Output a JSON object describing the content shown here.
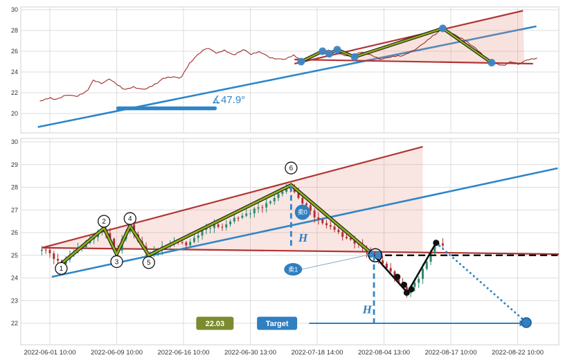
{
  "colors": {
    "grid": "#dcdcdc",
    "panel_border": "#d0d0d0",
    "axis_text": "#333333",
    "price_line": "#9e2b25",
    "wedge_line": "#b03434",
    "wedge_fill": "#e58a7a",
    "trend_blue": "#2e86c8",
    "zigzag_green": "#8fae1b",
    "zigzag_border": "#1c1c1c",
    "dot_blue": "#3d85c6",
    "badge_blue": "#2f7fc1",
    "badge_text": "#ffffff",
    "price_box_green": "#7a8c2e",
    "black": "#111111",
    "up_candle": "#2e8b6e",
    "down_candle": "#b03030"
  },
  "chart_data": {
    "x_labels": [
      "2022-06-01 10:00",
      "2022-06-09 10:00",
      "2022-06-16 10:00",
      "2022-06-30 13:00",
      "2022-07-18 14:00",
      "2022-08-04 13:00",
      "2022-08-17 10:00",
      "2022-08-22 10:00"
    ],
    "wiggle": [
      0.62,
      0.17,
      0.83,
      0.35,
      0.95,
      0.08,
      0.55,
      0.72,
      0.28,
      0.9,
      0.12,
      0.47,
      0.77
    ],
    "panels": [
      {
        "type": "line",
        "yticks": [
          30,
          28,
          26,
          24,
          22,
          20
        ],
        "ylim": [
          18.1,
          30.3
        ],
        "price_keyframes": [
          [
            -0.15,
            21.2
          ],
          [
            0.0,
            21.5
          ],
          [
            0.1,
            21.35
          ],
          [
            0.25,
            21.8
          ],
          [
            0.4,
            21.65
          ],
          [
            0.55,
            22.1
          ],
          [
            0.65,
            23.2
          ],
          [
            0.78,
            22.9
          ],
          [
            0.9,
            23.35
          ],
          [
            1.0,
            22.8
          ],
          [
            1.12,
            22.3
          ],
          [
            1.25,
            22.55
          ],
          [
            1.4,
            22.3
          ],
          [
            1.55,
            22.7
          ],
          [
            1.7,
            23.4
          ],
          [
            1.85,
            23.55
          ],
          [
            1.95,
            23.35
          ],
          [
            2.1,
            24.9
          ],
          [
            2.2,
            25.6
          ],
          [
            2.35,
            26.35
          ],
          [
            2.5,
            25.8
          ],
          [
            2.62,
            26.1
          ],
          [
            2.75,
            25.6
          ],
          [
            2.9,
            26.2
          ],
          [
            3.0,
            25.7
          ],
          [
            3.15,
            25.95
          ],
          [
            3.3,
            25.35
          ],
          [
            3.5,
            25.2
          ],
          [
            3.65,
            25.6
          ],
          [
            3.78,
            25.1
          ],
          [
            3.95,
            25.6
          ],
          [
            4.1,
            26.0
          ],
          [
            4.22,
            26.1
          ],
          [
            4.35,
            25.7
          ],
          [
            4.5,
            25.5
          ],
          [
            4.65,
            25.9
          ],
          [
            4.8,
            25.65
          ],
          [
            4.95,
            25.2
          ],
          [
            5.1,
            25.45
          ],
          [
            5.3,
            25.6
          ],
          [
            5.5,
            26.3
          ],
          [
            5.7,
            27.3
          ],
          [
            5.88,
            28.2
          ],
          [
            6.05,
            27.6
          ],
          [
            6.2,
            27.1
          ],
          [
            6.35,
            26.4
          ],
          [
            6.5,
            25.5
          ],
          [
            6.62,
            24.9
          ],
          [
            6.78,
            24.6
          ],
          [
            6.9,
            25.0
          ],
          [
            7.02,
            24.75
          ],
          [
            7.15,
            25.2
          ],
          [
            7.3,
            25.3
          ]
        ],
        "blue_trendline": {
          "p1": [
            -0.18,
            18.7
          ],
          "p2": [
            7.28,
            28.4
          ]
        },
        "angle_tool": {
          "segment_t1": 1.02,
          "segment_t2": 2.47,
          "segment_v": 20.5,
          "label": "∡47.9°",
          "label_t": 2.42,
          "label_v": 21.0
        },
        "wedge": {
          "upper": [
            [
              3.66,
              24.8
            ],
            [
              7.08,
              29.9
            ]
          ],
          "lower": [
            [
              3.66,
              25.2
            ],
            [
              7.23,
              24.8
            ]
          ],
          "fill_polygon": [
            [
              4.56,
              25.45
            ],
            [
              5.88,
              28.2
            ],
            [
              7.08,
              29.85
            ],
            [
              7.1,
              24.82
            ],
            [
              4.56,
              25.2
            ]
          ]
        },
        "zigzag": [
          [
            3.76,
            25.0
          ],
          [
            4.08,
            26.0
          ],
          [
            4.18,
            25.75
          ],
          [
            4.3,
            26.15
          ],
          [
            4.56,
            25.45
          ],
          [
            5.88,
            28.2
          ],
          [
            6.61,
            24.9
          ]
        ]
      },
      {
        "type": "candlestick",
        "yticks": [
          30,
          29,
          28,
          27,
          26,
          25,
          24,
          23,
          22
        ],
        "ylim": [
          21.1,
          30.1
        ],
        "bars": {
          "t_start": -0.12,
          "t_end": 5.9,
          "step": 0.06,
          "width": 3
        },
        "close_keyframes": [
          [
            -0.12,
            25.3
          ],
          [
            0.0,
            25.05
          ],
          [
            0.17,
            24.62
          ],
          [
            0.35,
            25.1
          ],
          [
            0.55,
            25.6
          ],
          [
            0.81,
            26.2
          ],
          [
            0.92,
            25.6
          ],
          [
            1.0,
            25.05
          ],
          [
            1.1,
            25.8
          ],
          [
            1.2,
            26.3
          ],
          [
            1.33,
            25.6
          ],
          [
            1.48,
            25.0
          ],
          [
            1.65,
            25.35
          ],
          [
            1.85,
            25.55
          ],
          [
            2.05,
            25.5
          ],
          [
            2.25,
            26.0
          ],
          [
            2.45,
            26.35
          ],
          [
            2.6,
            26.2
          ],
          [
            2.8,
            26.7
          ],
          [
            3.0,
            26.9
          ],
          [
            3.2,
            27.2
          ],
          [
            3.4,
            27.6
          ],
          [
            3.55,
            27.9
          ],
          [
            3.61,
            28.1
          ],
          [
            3.7,
            27.6
          ],
          [
            3.85,
            27.1
          ],
          [
            4.0,
            26.6
          ],
          [
            4.15,
            26.3
          ],
          [
            4.3,
            26.0
          ],
          [
            4.5,
            25.7
          ],
          [
            4.7,
            25.25
          ],
          [
            4.85,
            25.0
          ],
          [
            5.0,
            24.5
          ],
          [
            5.15,
            24.1
          ],
          [
            5.35,
            23.35
          ],
          [
            5.5,
            23.9
          ],
          [
            5.65,
            24.8
          ],
          [
            5.78,
            25.55
          ],
          [
            5.9,
            25.35
          ]
        ],
        "wedge": {
          "upper": [
            [
              -0.12,
              25.33
            ],
            [
              5.58,
              29.79
            ]
          ],
          "lower": [
            [
              -0.12,
              25.33
            ],
            [
              7.65,
              25.05
            ]
          ],
          "fill_right_t": 5.58
        },
        "blue_trendline": {
          "p1": [
            0.03,
            24.05
          ],
          "p2": [
            7.6,
            28.84
          ]
        },
        "zigzag": [
          [
            0.17,
            24.62
          ],
          [
            0.81,
            26.2
          ],
          [
            1.0,
            25.05
          ],
          [
            1.2,
            26.3
          ],
          [
            1.48,
            25.0
          ],
          [
            3.61,
            28.1
          ],
          [
            4.85,
            25.0
          ]
        ],
        "pivot_labels": [
          {
            "n": "1",
            "t": 0.17,
            "v": 24.42
          },
          {
            "n": "2",
            "t": 0.81,
            "v": 26.5
          },
          {
            "n": "3",
            "t": 1.0,
            "v": 24.72
          },
          {
            "n": "4",
            "t": 1.2,
            "v": 26.62
          },
          {
            "n": "5",
            "t": 1.48,
            "v": 24.68
          },
          {
            "n": "6",
            "t": 3.61,
            "v": 28.85
          }
        ],
        "sell_markers": [
          {
            "label": "卖0",
            "t": 3.78,
            "v": 26.9,
            "shape": "circle"
          },
          {
            "label": "卖1",
            "t": 3.64,
            "v": 24.38,
            "shape": "ellipse",
            "pointer_to": [
              4.8,
              25.04
            ]
          }
        ],
        "h_labels": [
          {
            "text": "H",
            "t": 3.72,
            "v": 25.6
          },
          {
            "text": "H",
            "t": 4.68,
            "v": 22.45
          }
        ],
        "dashed_verticals": [
          {
            "t": 3.61,
            "v1": 28.05,
            "v2": 25.3
          },
          {
            "t": 4.85,
            "v1": 25.0,
            "v2": 21.85
          }
        ],
        "dashed_horizontal": {
          "v": 25.0,
          "t1": 4.85,
          "t2": 7.6
        },
        "black_path": [
          [
            4.85,
            25.0
          ],
          [
            5.35,
            23.35
          ],
          [
            5.78,
            25.55
          ]
        ],
        "black_dots": [
          [
            5.2,
            24.05
          ],
          [
            5.3,
            23.7
          ],
          [
            5.34,
            23.35
          ],
          [
            5.41,
            23.5
          ],
          [
            5.78,
            25.55
          ]
        ],
        "blue_dots": [
          [
            4.8,
            25.06
          ],
          [
            4.92,
            25.0
          ]
        ],
        "pivot_circle": {
          "t": 4.87,
          "v": 25.0
        },
        "projection": {
          "from": [
            5.78,
            25.55
          ],
          "to": [
            7.1,
            22.12
          ]
        },
        "target": {
          "price_label": "22.03",
          "price_box_t": 2.47,
          "button_label": "Target",
          "button_t": 3.4,
          "row_v": 22.0,
          "arrow_t1": 3.88,
          "arrow_t2": 7.03,
          "dot": [
            7.13,
            22.03
          ]
        }
      }
    ]
  }
}
